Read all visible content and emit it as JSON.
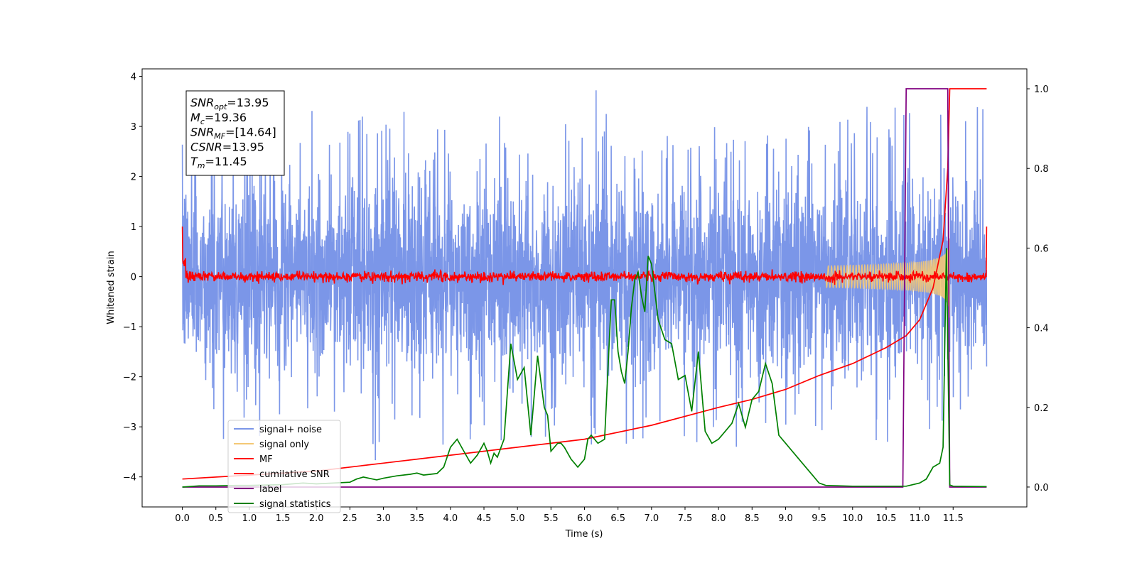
{
  "chart_data": {
    "type": "line",
    "xlabel": "Time (s)",
    "ylabel": "Whitened strain",
    "xlim": [
      -0.6,
      12.6
    ],
    "ylim": [
      -4.6,
      4.15
    ],
    "y2lim": [
      -0.05,
      1.05
    ],
    "x_ticks": [
      "0.0",
      "0.5",
      "1.0",
      "1.5",
      "2.0",
      "2.5",
      "3.0",
      "3.5",
      "4.0",
      "4.5",
      "5.0",
      "5.5",
      "6.0",
      "6.5",
      "7.0",
      "7.5",
      "8.0",
      "8.5",
      "9.0",
      "9.5",
      "10.0",
      "10.5",
      "11.0",
      "11.5"
    ],
    "y_ticks": [
      -4,
      -3,
      -2,
      -1,
      0,
      1,
      2,
      3,
      4
    ],
    "y2_ticks": [
      "0.0",
      "0.2",
      "0.4",
      "0.6",
      "0.8",
      "1.0"
    ],
    "legend_position": "lower-left",
    "annotation": [
      {
        "base": "SNR",
        "sub": "opt",
        "value": "=13.95"
      },
      {
        "base": "M",
        "sub": "c",
        "value": "=19.36"
      },
      {
        "base": "SNR",
        "sub": "MF",
        "value": "=[14.64]"
      },
      {
        "base": "CSNR",
        "sub": "",
        "value": "=13.95"
      },
      {
        "base": "T",
        "sub": "m",
        "value": "=11.45"
      }
    ],
    "series": [
      {
        "name": "signal+ noise",
        "color": "#7b96e8",
        "axis": "left",
        "style": "noise",
        "x_range": [
          0.0,
          12.0
        ],
        "envelope": [
          -2.2,
          2.6
        ],
        "spikes": [
          -4.1,
          3.72
        ]
      },
      {
        "name": "signal only",
        "color": "#f4c875",
        "axis": "left",
        "style": "chirp",
        "t_merger": 11.45,
        "peak_amplitude": 1.0
      },
      {
        "name": "MF",
        "color": "#ff0000",
        "axis": "left",
        "style": "mf",
        "x_range": [
          0.0,
          12.0
        ],
        "start_value": 1.0,
        "end_value": 1.0
      },
      {
        "name": "cumilative SNR",
        "color": "#ff0000",
        "axis": "right",
        "x": [
          0.0,
          1.0,
          2.0,
          3.0,
          4.0,
          5.0,
          6.0,
          7.0,
          8.0,
          8.5,
          9.0,
          9.5,
          10.0,
          10.5,
          10.8,
          11.0,
          11.2,
          11.35,
          11.42,
          11.45,
          12.0
        ],
        "y": [
          0.02,
          0.03,
          0.04,
          0.06,
          0.08,
          0.1,
          0.12,
          0.155,
          0.2,
          0.22,
          0.245,
          0.28,
          0.31,
          0.35,
          0.38,
          0.42,
          0.5,
          0.62,
          0.8,
          1.0,
          1.0
        ]
      },
      {
        "name": "label",
        "color": "#800080",
        "axis": "right",
        "x": [
          0.0,
          10.75,
          10.8,
          11.42,
          11.45,
          12.0
        ],
        "y": [
          0.0,
          0.0,
          1.0,
          1.0,
          0.0,
          0.0
        ]
      },
      {
        "name": "signal statistics",
        "color": "#008000",
        "axis": "right",
        "x": [
          0.0,
          0.25,
          0.5,
          0.8,
          1.0,
          1.5,
          1.8,
          2.0,
          2.5,
          2.6,
          2.7,
          2.9,
          3.0,
          3.2,
          3.4,
          3.5,
          3.6,
          3.8,
          3.9,
          4.0,
          4.1,
          4.2,
          4.3,
          4.4,
          4.5,
          4.55,
          4.6,
          4.65,
          4.7,
          4.8,
          4.9,
          5.0,
          5.1,
          5.2,
          5.3,
          5.4,
          5.45,
          5.5,
          5.6,
          5.65,
          5.7,
          5.8,
          5.9,
          6.0,
          6.05,
          6.1,
          6.2,
          6.3,
          6.4,
          6.45,
          6.5,
          6.55,
          6.6,
          6.65,
          6.7,
          6.75,
          6.8,
          6.85,
          6.9,
          6.95,
          7.0,
          7.1,
          7.2,
          7.3,
          7.4,
          7.5,
          7.6,
          7.7,
          7.8,
          7.9,
          8.0,
          8.1,
          8.2,
          8.3,
          8.4,
          8.5,
          8.6,
          8.7,
          8.8,
          8.9,
          9.0,
          9.1,
          9.2,
          9.3,
          9.4,
          9.5,
          9.6,
          10.0,
          10.5,
          10.8,
          11.0,
          11.1,
          11.2,
          11.3,
          11.35,
          11.4,
          11.45,
          11.5,
          12.0
        ],
        "y": [
          0.0,
          0.003,
          0.003,
          0.004,
          0.004,
          0.006,
          0.01,
          0.008,
          0.012,
          0.02,
          0.025,
          0.018,
          0.022,
          0.028,
          0.032,
          0.035,
          0.03,
          0.034,
          0.05,
          0.1,
          0.12,
          0.09,
          0.06,
          0.08,
          0.11,
          0.09,
          0.06,
          0.085,
          0.075,
          0.12,
          0.36,
          0.27,
          0.3,
          0.13,
          0.33,
          0.2,
          0.18,
          0.09,
          0.11,
          0.11,
          0.1,
          0.07,
          0.05,
          0.07,
          0.12,
          0.13,
          0.11,
          0.12,
          0.47,
          0.47,
          0.34,
          0.29,
          0.26,
          0.34,
          0.45,
          0.52,
          0.54,
          0.48,
          0.44,
          0.58,
          0.56,
          0.42,
          0.37,
          0.36,
          0.27,
          0.28,
          0.19,
          0.34,
          0.14,
          0.11,
          0.12,
          0.14,
          0.16,
          0.21,
          0.15,
          0.22,
          0.24,
          0.31,
          0.26,
          0.13,
          0.11,
          0.09,
          0.07,
          0.05,
          0.03,
          0.01,
          0.004,
          0.002,
          0.002,
          0.002,
          0.01,
          0.02,
          0.05,
          0.06,
          0.1,
          0.6,
          0.005,
          0.002,
          0.001
        ]
      }
    ]
  }
}
